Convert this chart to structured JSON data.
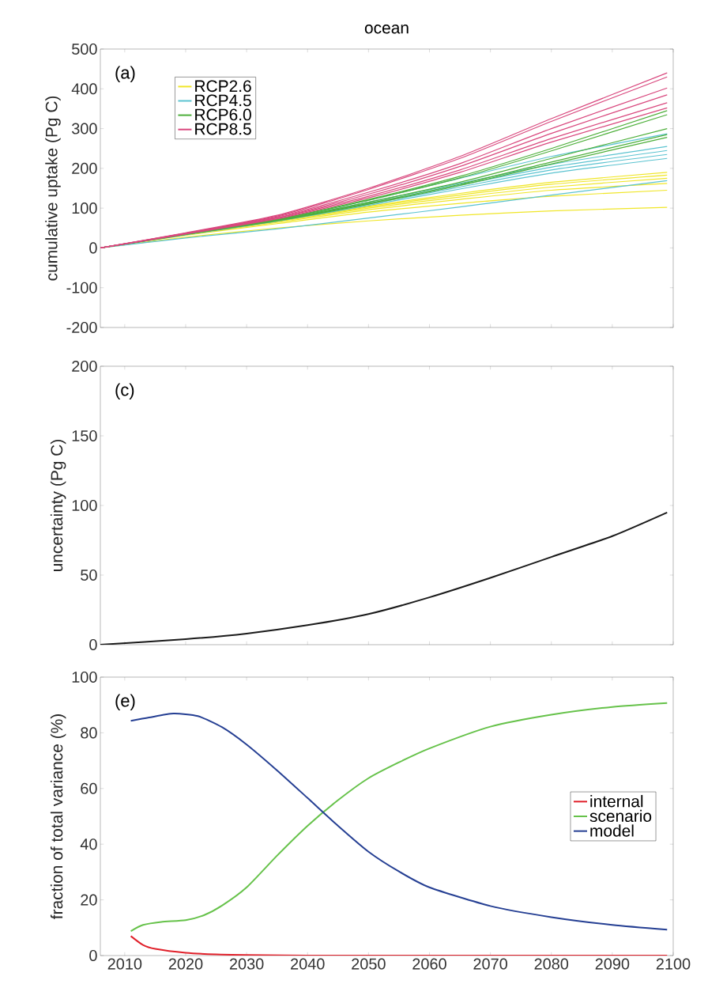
{
  "chart_data": [
    {
      "type": "line",
      "title": "ocean",
      "ylabel": "cumulative uptake (Pg C)",
      "annotations": [
        "(a)"
      ],
      "x": [
        2006,
        2020,
        2035,
        2050,
        2065,
        2080,
        2099
      ],
      "xlim": [
        2006,
        2100
      ],
      "xticks": [
        2010,
        2020,
        2030,
        2040,
        2050,
        2060,
        2070,
        2080,
        2090,
        2100
      ],
      "ylim": [
        -200,
        500
      ],
      "yticks": [
        -200,
        -100,
        0,
        100,
        200,
        300,
        400,
        500
      ],
      "tick_labels": "y",
      "legend": "top left",
      "series": [
        {
          "name": "RCP2.6",
          "color": "#f0e628",
          "values": [
            0,
            34,
            68,
            105,
            137,
            165,
            190
          ]
        },
        {
          "color": "#f0e628",
          "values": [
            0,
            34,
            67,
            103,
            133,
            160,
            183
          ]
        },
        {
          "color": "#f0e628",
          "values": [
            0,
            33,
            66,
            100,
            128,
            153,
            175
          ]
        },
        {
          "color": "#f0e628",
          "values": [
            0,
            33,
            64,
            96,
            122,
            145,
            162
          ]
        },
        {
          "color": "#f0e628",
          "values": [
            0,
            32,
            61,
            90,
            112,
            130,
            145
          ]
        },
        {
          "color": "#f0e628",
          "values": [
            0,
            27,
            50,
            68,
            82,
            93,
            102
          ]
        },
        {
          "name": "RCP4.5",
          "color": "#5bc3d0",
          "values": [
            0,
            35,
            72,
            120,
            175,
            230,
            287
          ]
        },
        {
          "color": "#5bc3d0",
          "values": [
            0,
            34,
            70,
            115,
            162,
            210,
            255
          ]
        },
        {
          "color": "#5bc3d0",
          "values": [
            0,
            34,
            69,
            112,
            158,
            203,
            245
          ]
        },
        {
          "color": "#5bc3d0",
          "values": [
            0,
            34,
            68,
            110,
            153,
            196,
            235
          ]
        },
        {
          "color": "#5bc3d0",
          "values": [
            0,
            33,
            67,
            107,
            148,
            188,
            225
          ]
        },
        {
          "color": "#5bc3d0",
          "values": [
            0,
            25,
            48,
            75,
            103,
            133,
            169
          ]
        },
        {
          "name": "RCP6.0",
          "color": "#4daf3a",
          "values": [
            0,
            35,
            72,
            122,
            180,
            250,
            345
          ]
        },
        {
          "color": "#4daf3a",
          "values": [
            0,
            35,
            71,
            120,
            176,
            244,
            335
          ]
        },
        {
          "color": "#4daf3a",
          "values": [
            0,
            34,
            70,
            115,
            165,
            225,
            300
          ]
        },
        {
          "color": "#4daf3a",
          "values": [
            0,
            34,
            69,
            112,
            160,
            216,
            285
          ]
        },
        {
          "color": "#4daf3a",
          "values": [
            0,
            34,
            68,
            110,
            157,
            211,
            278
          ]
        },
        {
          "name": "RCP8.5",
          "color": "#d9487e",
          "values": [
            0,
            38,
            82,
            150,
            230,
            325,
            440
          ]
        },
        {
          "color": "#d9487e",
          "values": [
            0,
            37,
            80,
            147,
            225,
            318,
            430
          ]
        },
        {
          "color": "#d9487e",
          "values": [
            0,
            37,
            78,
            140,
            212,
            300,
            402
          ]
        },
        {
          "color": "#d9487e",
          "values": [
            0,
            36,
            76,
            135,
            205,
            288,
            385
          ]
        },
        {
          "color": "#d9487e",
          "values": [
            0,
            36,
            75,
            130,
            196,
            275,
            365
          ]
        },
        {
          "color": "#d9487e",
          "values": [
            0,
            35,
            73,
            126,
            190,
            266,
            352
          ]
        }
      ]
    },
    {
      "type": "line",
      "ylabel": "uncertainty (Pg C)",
      "annotations": [
        "(c)"
      ],
      "x": [
        2006,
        2020,
        2030,
        2040,
        2050,
        2060,
        2070,
        2080,
        2090,
        2099
      ],
      "xlim": [
        2006,
        2100
      ],
      "xticks": [
        2010,
        2020,
        2030,
        2040,
        2050,
        2060,
        2070,
        2080,
        2090,
        2100
      ],
      "ylim": [
        0,
        200
      ],
      "yticks": [
        0,
        50,
        100,
        150,
        200
      ],
      "tick_labels": "y",
      "series": [
        {
          "color": "#1a1a1a",
          "values": [
            0,
            4,
            8,
            14,
            22,
            34,
            48,
            63,
            78,
            95
          ]
        }
      ]
    },
    {
      "type": "line",
      "ylabel": "fraction of total variance (%)",
      "annotations": [
        "(e)"
      ],
      "xlim": [
        2006,
        2100
      ],
      "xticks": [
        2010,
        2020,
        2030,
        2040,
        2050,
        2060,
        2070,
        2080,
        2090,
        2100
      ],
      "ylim": [
        0,
        100
      ],
      "yticks": [
        0,
        20,
        40,
        60,
        80,
        100
      ],
      "legend": "right",
      "series": [
        {
          "name": "internal",
          "color": "#e0202a",
          "x": [
            2011,
            2013,
            2015,
            2020,
            2025,
            2030,
            2040,
            2060,
            2080,
            2099
          ],
          "values": [
            7,
            3.8,
            2.4,
            1,
            0.4,
            0.2,
            0,
            0,
            0,
            0
          ]
        },
        {
          "name": "scenario",
          "color": "#66c24a",
          "x": [
            2011,
            2013,
            2016,
            2020,
            2023,
            2026,
            2030,
            2035,
            2040,
            2045,
            2050,
            2055,
            2060,
            2070,
            2080,
            2090,
            2099
          ],
          "values": [
            8.8,
            11,
            12.1,
            12.7,
            14.5,
            18,
            24.5,
            35.9,
            46.6,
            55.8,
            63.7,
            69.4,
            74.4,
            82.2,
            86.5,
            89.3,
            90.7
          ]
        },
        {
          "name": "model",
          "color": "#253f93",
          "x": [
            2011,
            2014,
            2018,
            2022,
            2026,
            2030,
            2035,
            2040,
            2045,
            2050,
            2055,
            2060,
            2070,
            2080,
            2090,
            2099
          ],
          "values": [
            84.3,
            85.5,
            86.9,
            86,
            82,
            75.8,
            66.5,
            56.6,
            46.6,
            37.3,
            30.2,
            24.5,
            17.8,
            13.8,
            11,
            9.3
          ]
        }
      ]
    }
  ]
}
